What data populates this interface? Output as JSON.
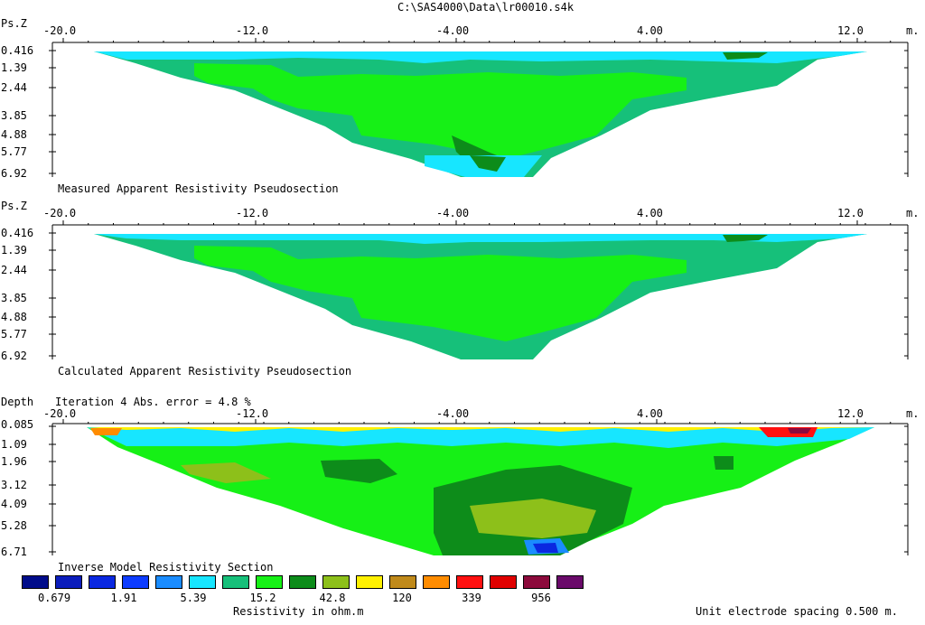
{
  "title": "C:\\SAS4000\\Data\\lr00010.s4k",
  "x_unit": "m.",
  "x_ticks": [
    "-20.0",
    "-12.0",
    "-4.00",
    "4.00",
    "12.0"
  ],
  "sections": [
    {
      "name": "measured",
      "axis_label": "Ps.Z",
      "caption": "Measured Apparent Resistivity Pseudosection",
      "depths": [
        "0.416",
        "1.39",
        "2.44",
        "3.85",
        "4.88",
        "5.77",
        "6.92"
      ]
    },
    {
      "name": "calculated",
      "axis_label": "Ps.Z",
      "caption": "Calculated Apparent Resistivity Pseudosection",
      "depths": [
        "0.416",
        "1.39",
        "2.44",
        "3.85",
        "4.88",
        "5.77",
        "6.92"
      ]
    },
    {
      "name": "inverse",
      "axis_label": "Depth",
      "subtitle": "Iteration 4 Abs. error = 4.8 %",
      "caption": "Inverse Model Resistivity Section",
      "depths": [
        "0.085",
        "1.09",
        "1.96",
        "3.12",
        "4.09",
        "5.28",
        "6.71"
      ]
    }
  ],
  "legend": {
    "colors": [
      "#000c8a",
      "#0b1dbc",
      "#0a28e0",
      "#0d3cff",
      "#1a8cff",
      "#17e6ff",
      "#16c07a",
      "#16f016",
      "#0d8c1a",
      "#8dc01a",
      "#fff000",
      "#c08a1a",
      "#ff8c00",
      "#ff1010",
      "#e00000",
      "#8c0a3c",
      "#6a0a6a"
    ],
    "labels": [
      "0.679",
      "1.91",
      "5.39",
      "15.2",
      "42.8",
      "120",
      "339",
      "956"
    ],
    "unit_label": "Resistivity in ohm.m"
  },
  "footer": {
    "spacing_text": "Unit electrode spacing 0.500 m."
  }
}
